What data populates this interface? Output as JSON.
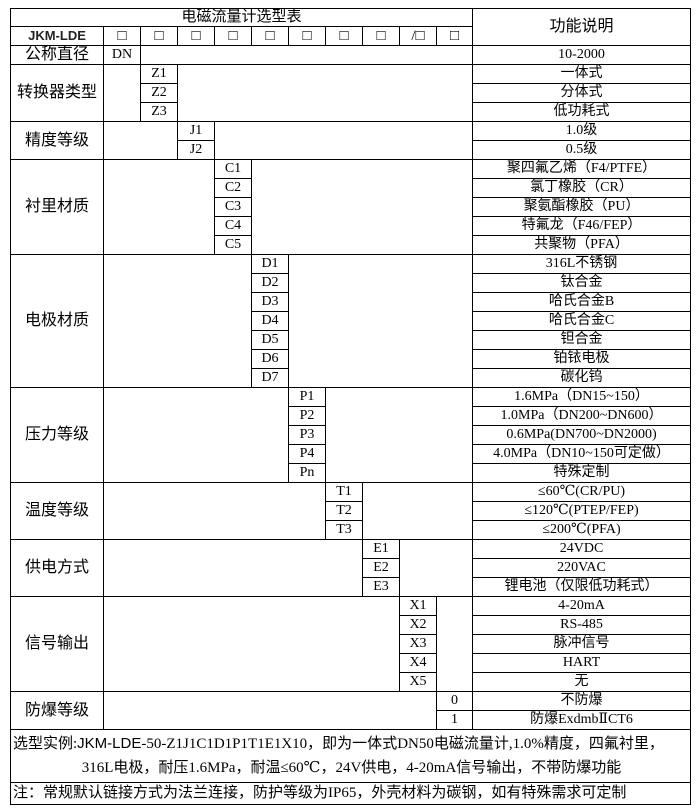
{
  "header": {
    "title": "电磁流量计选型表",
    "function_header": "功能说明",
    "model_prefix": "JKM-LDE",
    "boxes": [
      "□",
      "□",
      "□",
      "□",
      "□",
      "□",
      "□",
      "□",
      "/□",
      "□"
    ]
  },
  "groups": [
    {
      "label": "公称直径",
      "col": 1,
      "options": [
        {
          "code": "DN",
          "desc": "10-2000"
        }
      ]
    },
    {
      "label": "转换器类型",
      "col": 2,
      "options": [
        {
          "code": "Z1",
          "desc": "一体式"
        },
        {
          "code": "Z2",
          "desc": "分体式"
        },
        {
          "code": "Z3",
          "desc": "低功耗式"
        }
      ]
    },
    {
      "label": "精度等级",
      "col": 3,
      "options": [
        {
          "code": "J1",
          "desc": "1.0级"
        },
        {
          "code": "J2",
          "desc": "0.5级"
        }
      ]
    },
    {
      "label": "衬里材质",
      "col": 4,
      "options": [
        {
          "code": "C1",
          "desc": "聚四氟乙烯（F4/PTFE）"
        },
        {
          "code": "C2",
          "desc": "氯丁橡胶（CR）"
        },
        {
          "code": "C3",
          "desc": "聚氨酯橡胶（PU）"
        },
        {
          "code": "C4",
          "desc": "特氟龙（F46/FEP）"
        },
        {
          "code": "C5",
          "desc": "共聚物（PFA）"
        }
      ]
    },
    {
      "label": "电极材质",
      "col": 5,
      "options": [
        {
          "code": "D1",
          "desc": "316L不锈钢"
        },
        {
          "code": "D2",
          "desc": "钛合金"
        },
        {
          "code": "D3",
          "desc": "哈氏合金B"
        },
        {
          "code": "D4",
          "desc": "哈氏合金C"
        },
        {
          "code": "D5",
          "desc": "钽合金"
        },
        {
          "code": "D6",
          "desc": "铂铱电极"
        },
        {
          "code": "D7",
          "desc": "碳化钨"
        }
      ]
    },
    {
      "label": "压力等级",
      "col": 6,
      "options": [
        {
          "code": "P1",
          "desc": "1.6MPa（DN15~150）"
        },
        {
          "code": "P2",
          "desc": "1.0MPa（DN200~DN600）"
        },
        {
          "code": "P3",
          "desc": "0.6MPa(DN700~DN2000)"
        },
        {
          "code": "P4",
          "desc": "4.0MPa（DN10~150可定做）"
        },
        {
          "code": "Pn",
          "desc": "特殊定制"
        }
      ]
    },
    {
      "label": "温度等级",
      "col": 7,
      "options": [
        {
          "code": "T1",
          "desc": "≤60℃(CR/PU)"
        },
        {
          "code": "T2",
          "desc": "≤120℃(PTEP/FEP)"
        },
        {
          "code": "T3",
          "desc": "≤200℃(PFA)"
        }
      ]
    },
    {
      "label": "供电方式",
      "col": 8,
      "options": [
        {
          "code": "E1",
          "desc": "24VDC"
        },
        {
          "code": "E2",
          "desc": "220VAC"
        },
        {
          "code": "E3",
          "desc": "锂电池（仅限低功耗式）"
        }
      ]
    },
    {
      "label": "信号输出",
      "col": 9,
      "options": [
        {
          "code": "X1",
          "desc": "4-20mA"
        },
        {
          "code": "X2",
          "desc": "RS-485"
        },
        {
          "code": "X3",
          "desc": "脉冲信号"
        },
        {
          "code": "X4",
          "desc": "HART"
        },
        {
          "code": "X5",
          "desc": "无"
        }
      ]
    },
    {
      "label": "防爆等级",
      "col": 10,
      "options": [
        {
          "code": "0",
          "desc": "不防爆"
        },
        {
          "code": "1",
          "desc": "防爆ExdmbⅡCT6"
        }
      ]
    }
  ],
  "example": {
    "prefix": "选型实例:",
    "model": "JKM-LDE",
    "line1_rest": "-50-Z1J1C1D1P1T1E1X10，即为一体式DN50电磁流量计,1.0%精度，四氟衬里，",
    "line2": "316L电极，耐压1.6MPa，耐温≤60℃，24V供电，4-20mA信号输出，不带防爆功能"
  },
  "note": "注：常规默认链接方式为法兰连接，防护等级为IP65，外壳材料为碳钢，如有特殊需求可定制"
}
